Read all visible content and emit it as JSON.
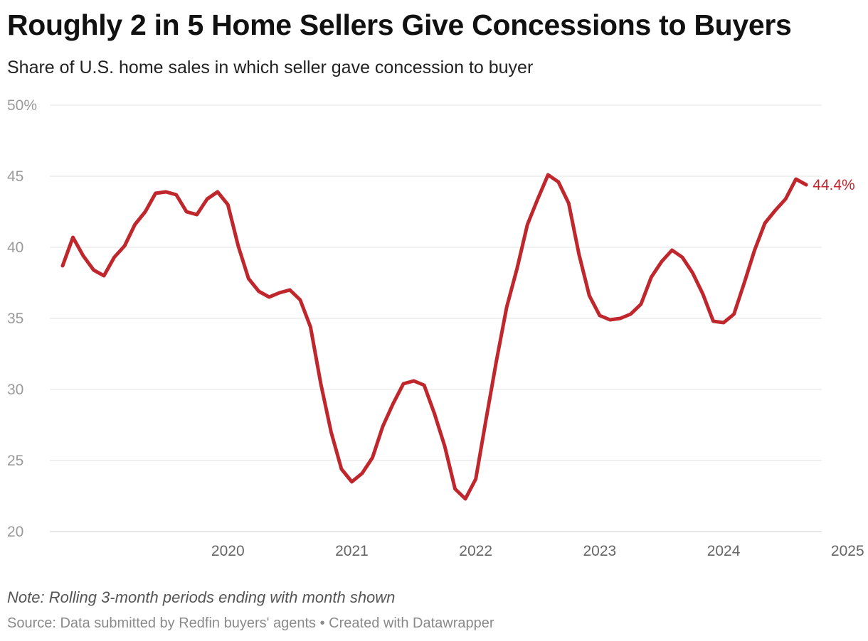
{
  "header": {
    "title": "Roughly 2 in 5 Home Sellers Give Concessions to Buyers",
    "subtitle": "Share of U.S. home sales in which seller gave concession to buyer"
  },
  "footer": {
    "note": "Note: Rolling 3-month periods ending with month shown",
    "source": "Source: Data submitted by Redfin buyers' agents • Created with Datawrapper"
  },
  "colors": {
    "series": "#c0272d",
    "grid": "#e3e3e3"
  },
  "chart_data": {
    "type": "line",
    "ylim": [
      20,
      50
    ],
    "y_ticks": [
      {
        "value": 20,
        "label": "20"
      },
      {
        "value": 25,
        "label": "25"
      },
      {
        "value": 30,
        "label": "30"
      },
      {
        "value": 35,
        "label": "35"
      },
      {
        "value": 40,
        "label": "40"
      },
      {
        "value": 45,
        "label": "45"
      },
      {
        "value": 50,
        "label": "50%"
      }
    ],
    "x_ticks": [
      "2020",
      "2021",
      "2022",
      "2023",
      "2024",
      "2025"
    ],
    "grid": true,
    "x": [
      "2019-03",
      "2019-04",
      "2019-05",
      "2019-06",
      "2019-07",
      "2019-08",
      "2019-09",
      "2019-10",
      "2019-11",
      "2019-12",
      "2020-01",
      "2020-02",
      "2020-03",
      "2020-04",
      "2020-05",
      "2020-06",
      "2020-07",
      "2020-08",
      "2020-09",
      "2020-10",
      "2020-11",
      "2020-12",
      "2021-01",
      "2021-02",
      "2021-03",
      "2021-04",
      "2021-05",
      "2021-06",
      "2021-07",
      "2021-08",
      "2021-09",
      "2021-10",
      "2021-11",
      "2021-12",
      "2022-01",
      "2022-02",
      "2022-03",
      "2022-04",
      "2022-05",
      "2022-06",
      "2022-07",
      "2022-08",
      "2022-09",
      "2022-10",
      "2022-11",
      "2022-12",
      "2023-01",
      "2023-02",
      "2023-03",
      "2023-04",
      "2023-05",
      "2023-06",
      "2023-07",
      "2023-08",
      "2023-09",
      "2023-10",
      "2023-11",
      "2023-12",
      "2024-01",
      "2024-02",
      "2024-03",
      "2024-04",
      "2024-05",
      "2024-06",
      "2024-07",
      "2024-08",
      "2024-09",
      "2024-10",
      "2024-11",
      "2024-12",
      "2025-01",
      "2025-02",
      "2025-03"
    ],
    "series": [
      {
        "values": [
          38.7,
          40.7,
          39.4,
          38.4,
          38.0,
          39.3,
          40.1,
          41.6,
          42.5,
          43.8,
          43.9,
          43.7,
          42.5,
          42.3,
          43.4,
          43.9,
          43.0,
          40.1,
          37.8,
          36.9,
          36.5,
          36.8,
          37.0,
          36.3,
          34.4,
          30.4,
          27.0,
          24.4,
          23.5,
          24.1,
          25.2,
          27.4,
          29.0,
          30.4,
          30.6,
          30.3,
          28.3,
          26.0,
          23.0,
          22.3,
          23.7,
          27.9,
          32.0,
          35.8,
          38.5,
          41.6,
          43.4,
          45.1,
          44.6,
          43.1,
          39.5,
          36.6,
          35.2,
          34.9,
          35.0,
          35.3,
          36.0,
          37.9,
          39.0,
          39.8,
          39.3,
          38.2,
          36.7,
          34.8,
          34.7,
          35.3,
          37.5,
          39.8,
          41.7,
          42.6,
          43.4,
          44.8,
          44.4
        ],
        "end_label": "44.4%"
      }
    ]
  }
}
